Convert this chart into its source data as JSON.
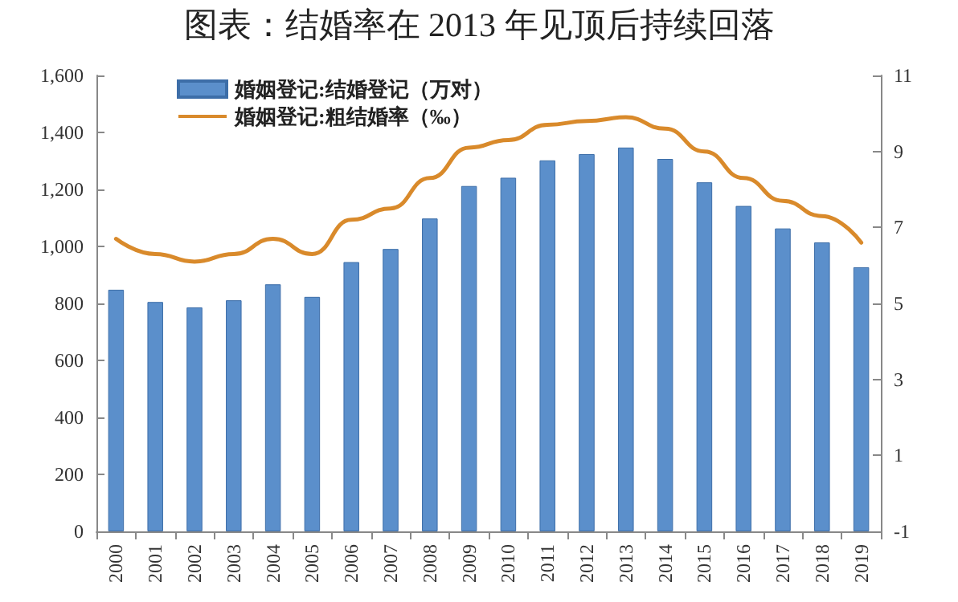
{
  "chart_data": {
    "type": "bar",
    "title": "图表：结婚率在 2013 年见顶后持续回落",
    "categories": [
      "2000",
      "2001",
      "2002",
      "2003",
      "2004",
      "2005",
      "2006",
      "2007",
      "2008",
      "2009",
      "2010",
      "2011",
      "2012",
      "2013",
      "2014",
      "2015",
      "2016",
      "2017",
      "2018",
      "2019"
    ],
    "series": [
      {
        "name": "婚姻登记:结婚登记（万对）",
        "color": "#5b8fcb",
        "values": [
          848,
          805,
          786,
          811,
          867,
          823,
          945,
          991,
          1098,
          1212,
          1241,
          1302,
          1324,
          1347,
          1307,
          1225,
          1142,
          1063,
          1014,
          927
        ]
      },
      {
        "name": "婚姻登记:粗结婚率（‰）",
        "type": "line",
        "axis": "y2",
        "color": "#d98a2b",
        "values": [
          6.7,
          6.3,
          6.1,
          6.3,
          6.7,
          6.3,
          7.2,
          7.5,
          8.3,
          9.1,
          9.3,
          9.7,
          9.8,
          9.9,
          9.6,
          9.0,
          8.3,
          7.7,
          7.3,
          6.6
        ]
      }
    ],
    "ylim": [
      0,
      1600
    ],
    "yticks": [
      {
        "value": 0,
        "label": "0"
      },
      {
        "value": 200,
        "label": "200"
      },
      {
        "value": 400,
        "label": "400"
      },
      {
        "value": 600,
        "label": "600"
      },
      {
        "value": 800,
        "label": "800"
      },
      {
        "value": 1000,
        "label": "1,000"
      },
      {
        "value": 1200,
        "label": "1,200"
      },
      {
        "value": 1400,
        "label": "1,400"
      },
      {
        "value": 1600,
        "label": "1,600"
      }
    ],
    "y2lim": [
      -1,
      11
    ],
    "y2ticks": [
      -1,
      1,
      3,
      5,
      7,
      9,
      11
    ],
    "legend": "top left",
    "grid": false,
    "marker": "none",
    "line_style": "solid"
  }
}
